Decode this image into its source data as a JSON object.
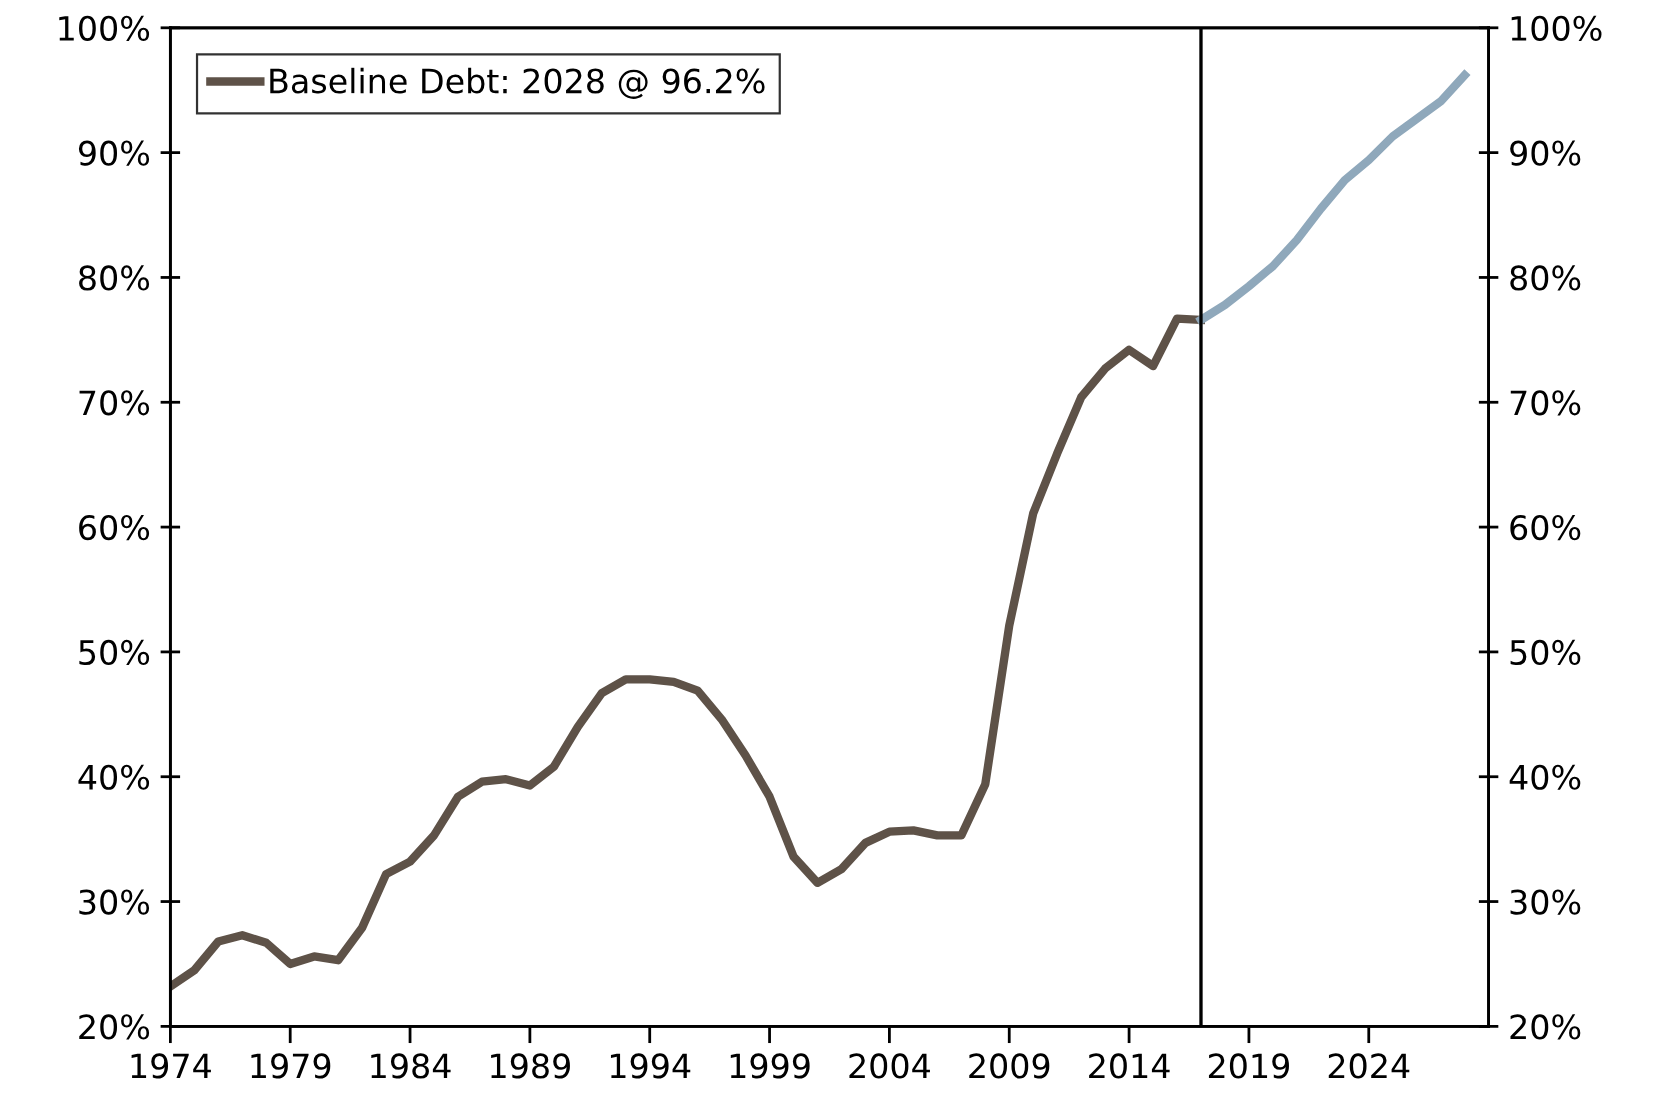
{
  "chart_data": {
    "type": "line",
    "series": [
      {
        "name": "Baseline Debt: 2028 @ 96.2%",
        "color": "#5e5248",
        "x": [
          1974,
          1975,
          1976,
          1977,
          1978,
          1979,
          1980,
          1981,
          1982,
          1983,
          1984,
          1985,
          1986,
          1987,
          1988,
          1989,
          1990,
          1991,
          1992,
          1993,
          1994,
          1995,
          1996,
          1997,
          1998,
          1999,
          2000,
          2001,
          2002,
          2003,
          2004,
          2005,
          2006,
          2007,
          2008,
          2009,
          2010,
          2011,
          2012,
          2013,
          2014,
          2015,
          2016,
          2017
        ],
        "values": [
          23.2,
          24.5,
          26.8,
          27.3,
          26.7,
          25.0,
          25.6,
          25.3,
          27.9,
          32.2,
          33.2,
          35.3,
          38.4,
          39.6,
          39.8,
          39.3,
          40.8,
          44.0,
          46.7,
          47.8,
          47.8,
          47.6,
          46.9,
          44.6,
          41.7,
          38.4,
          33.6,
          31.5,
          32.6,
          34.7,
          35.6,
          35.7,
          35.3,
          35.3,
          39.4,
          52.1,
          61.1,
          65.9,
          70.4,
          72.7,
          74.2,
          72.9,
          76.7,
          76.6
        ]
      },
      {
        "color": "#8fa8bb",
        "x": [
          2017,
          2018,
          2019,
          2020,
          2021,
          2022,
          2023,
          2024,
          2025,
          2026,
          2027,
          2028
        ],
        "values": [
          76.6,
          77.8,
          79.3,
          80.9,
          83.0,
          85.5,
          87.8,
          89.4,
          91.3,
          92.7,
          94.1,
          96.2
        ]
      }
    ],
    "xlim": [
      1974,
      2029
    ],
    "xticks": [
      1974,
      1979,
      1984,
      1989,
      1994,
      1999,
      2004,
      2009,
      2014,
      2019,
      2024
    ],
    "ylim": [
      20,
      100
    ],
    "yticks": [
      {
        "value": 20,
        "label": "20%"
      },
      {
        "value": 30,
        "label": "30%"
      },
      {
        "value": 40,
        "label": "40%"
      },
      {
        "value": 50,
        "label": "50%"
      },
      {
        "value": 60,
        "label": "60%"
      },
      {
        "value": 70,
        "label": "70%"
      },
      {
        "value": 80,
        "label": "80%"
      },
      {
        "value": 90,
        "label": "90%"
      },
      {
        "value": 100,
        "label": "100%"
      }
    ],
    "y2lim": [
      20,
      100
    ],
    "y2ticks": [
      {
        "value": 20,
        "label": "20%"
      },
      {
        "value": 30,
        "label": "30%"
      },
      {
        "value": 40,
        "label": "40%"
      },
      {
        "value": 50,
        "label": "50%"
      },
      {
        "value": 60,
        "label": "60%"
      },
      {
        "value": 70,
        "label": "70%"
      },
      {
        "value": 80,
        "label": "80%"
      },
      {
        "value": 90,
        "label": "90%"
      },
      {
        "value": 100,
        "label": "100%"
      }
    ],
    "ref_lines": [
      {
        "axis": "x",
        "value": 2017,
        "color": "#000000"
      }
    ],
    "grid": false,
    "legend": "top left",
    "marker": "none",
    "line_style": "solid"
  }
}
